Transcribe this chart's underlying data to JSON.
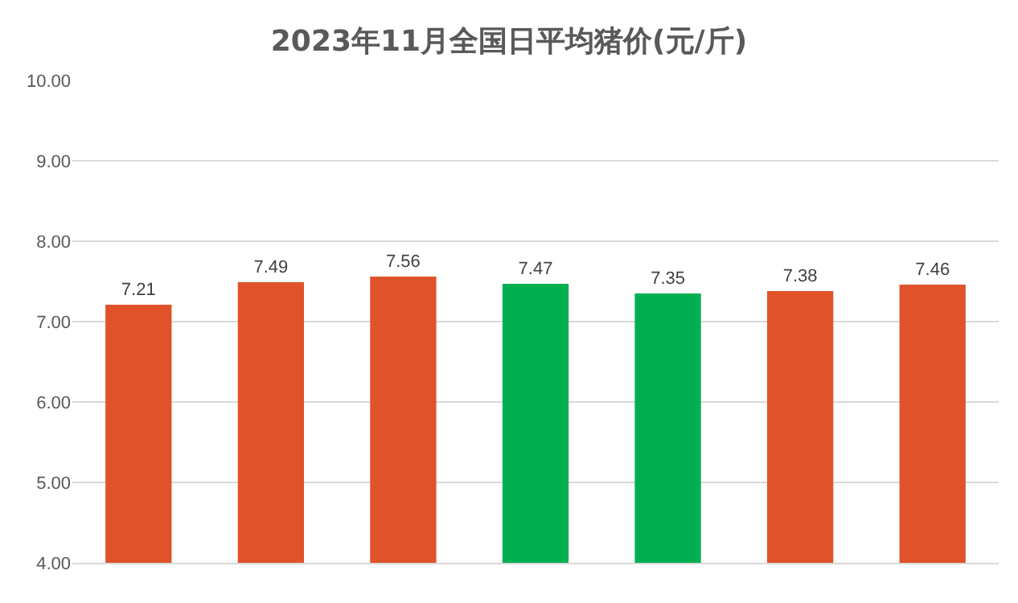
{
  "chart_data": {
    "type": "bar",
    "title": "2023年11月全国日平均猪价(元/斤)",
    "categories": [
      null,
      null,
      null,
      null,
      null,
      null,
      null
    ],
    "values": [
      7.21,
      7.49,
      7.56,
      7.47,
      7.35,
      7.38,
      7.46
    ],
    "colors": [
      "#e0522a",
      "#e0522a",
      "#e0522a",
      "#00b050",
      "#00b050",
      "#e0522a",
      "#e0522a"
    ],
    "ylim": [
      4,
      10
    ],
    "yticks": [
      {
        "value": 4,
        "label": "4.00"
      },
      {
        "value": 5,
        "label": "5.00"
      },
      {
        "value": 6,
        "label": "6.00"
      },
      {
        "value": 7,
        "label": "7.00"
      },
      {
        "value": 8,
        "label": "8.00"
      },
      {
        "value": 9,
        "label": "9.00"
      },
      {
        "value": 10,
        "label": "10.00"
      }
    ],
    "grid": "y",
    "tick_labels": "y",
    "data_labels": true
  }
}
